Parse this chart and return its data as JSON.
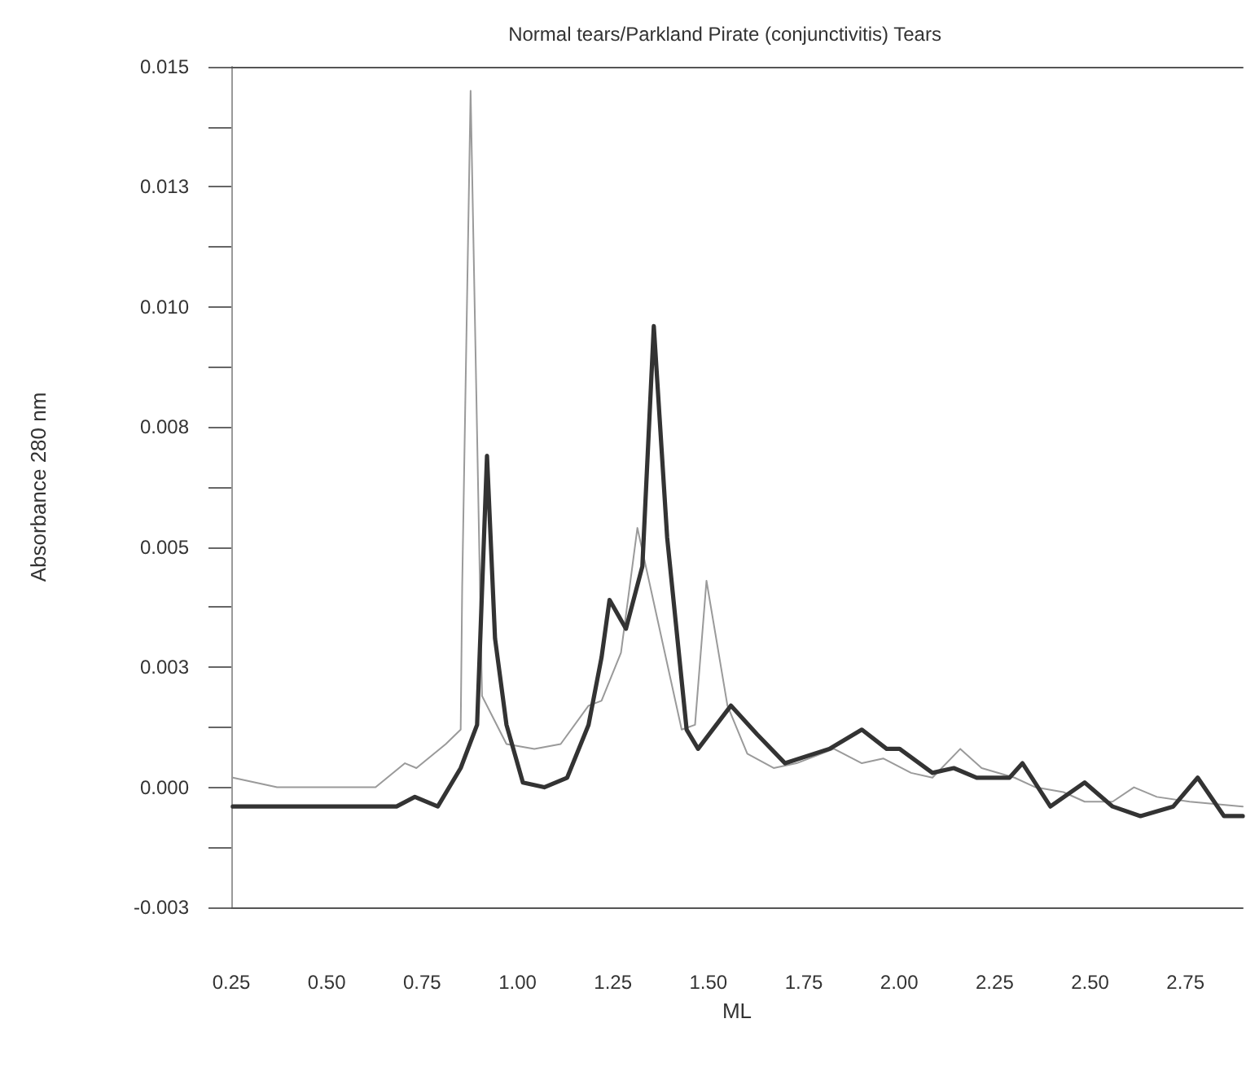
{
  "chart_data": {
    "type": "line",
    "title": "Normal tears/Parkland Pirate (conjunctivitis) Tears",
    "xlabel": "ML",
    "ylabel": "Absorbance 280 nm",
    "xlim": [
      0.25,
      2.9
    ],
    "ylim": [
      -0.0025,
      0.015
    ],
    "xticks": [
      {
        "value": 0.25,
        "label": "0.25"
      },
      {
        "value": 0.5,
        "label": "0.50"
      },
      {
        "value": 0.75,
        "label": "0.75"
      },
      {
        "value": 1,
        "label": "1.00"
      },
      {
        "value": 1.25,
        "label": "1.25"
      },
      {
        "value": 1.5,
        "label": "1.50"
      },
      {
        "value": 1.75,
        "label": "1.75"
      },
      {
        "value": 2,
        "label": "2.00"
      },
      {
        "value": 2.25,
        "label": "2.25"
      },
      {
        "value": 2.5,
        "label": "2.50"
      },
      {
        "value": 2.75,
        "label": "2.75"
      }
    ],
    "yticks": [
      {
        "value": -0.0025,
        "label": "-0.003"
      },
      {
        "value": -0.00125,
        "label": null
      },
      {
        "value": 0,
        "label": "0.000"
      },
      {
        "value": 0.00125,
        "label": null
      },
      {
        "value": 0.0025,
        "label": "0.003"
      },
      {
        "value": 0.00375,
        "label": null
      },
      {
        "value": 0.005,
        "label": "0.005"
      },
      {
        "value": 0.00625,
        "label": null
      },
      {
        "value": 0.0075,
        "label": "0.008"
      },
      {
        "value": 0.00875,
        "label": null
      },
      {
        "value": 0.01,
        "label": "0.010"
      },
      {
        "value": 0.01125,
        "label": null
      },
      {
        "value": 0.0125,
        "label": "0.013"
      },
      {
        "value": 0.01375,
        "label": null
      },
      {
        "value": 0.015,
        "label": "0.015"
      }
    ],
    "grid": false,
    "marker": "none",
    "line_style": "solid",
    "series": [
      {
        "color": "#9a9a9a",
        "x": [
          0.254,
          0.37,
          0.628,
          0.705,
          0.735,
          0.812,
          0.851,
          0.855,
          0.877,
          0.907,
          0.971,
          1.044,
          1.113,
          1.186,
          1.22,
          1.271,
          1.314,
          1.43,
          1.465,
          1.495,
          1.55,
          1.602,
          1.671,
          1.731,
          1.829,
          1.902,
          1.958,
          2.031,
          2.087,
          2.16,
          2.216,
          2.302,
          2.357,
          2.43,
          2.486,
          2.559,
          2.615,
          2.675,
          2.761,
          2.9
        ],
        "values": [
          0.0002,
          0.0,
          0.0,
          0.0005,
          0.0004,
          0.0009,
          0.0012,
          0.0042,
          0.0145,
          0.0019,
          0.0009,
          0.0008,
          0.0009,
          0.0017,
          0.0018,
          0.0028,
          0.0054,
          0.0012,
          0.0013,
          0.0043,
          0.0017,
          0.0007,
          0.0004,
          0.0005,
          0.0008,
          0.0005,
          0.0006,
          0.0003,
          0.0002,
          0.0008,
          0.0004,
          0.0002,
          0.0,
          -0.0001,
          -0.0003,
          -0.0003,
          0.0,
          -0.0002,
          -0.0003,
          -0.0004
        ]
      },
      {
        "color": "#333333",
        "x": [
          0.254,
          0.683,
          0.731,
          0.791,
          0.851,
          0.894,
          0.92,
          0.941,
          0.971,
          1.014,
          1.07,
          1.13,
          1.186,
          1.22,
          1.241,
          1.284,
          1.327,
          1.357,
          1.392,
          1.443,
          1.473,
          1.559,
          1.628,
          1.701,
          1.817,
          1.902,
          1.967,
          2.001,
          2.087,
          2.143,
          2.203,
          2.289,
          2.323,
          2.396,
          2.486,
          2.559,
          2.632,
          2.718,
          2.782,
          2.851,
          2.9
        ],
        "values": [
          -0.0004,
          -0.0004,
          -0.0002,
          -0.0004,
          0.0004,
          0.0013,
          0.0069,
          0.0031,
          0.0013,
          0.0001,
          0.0,
          0.0002,
          0.0013,
          0.0027,
          0.0039,
          0.0033,
          0.0046,
          0.0096,
          0.0052,
          0.0012,
          0.0008,
          0.0017,
          0.0011,
          0.0005,
          0.0008,
          0.0012,
          0.0008,
          0.0008,
          0.0003,
          0.0004,
          0.0002,
          0.0002,
          0.0005,
          -0.0004,
          0.0001,
          -0.0004,
          -0.0006,
          -0.0004,
          0.0002,
          -0.0006,
          -0.0006
        ]
      }
    ]
  }
}
